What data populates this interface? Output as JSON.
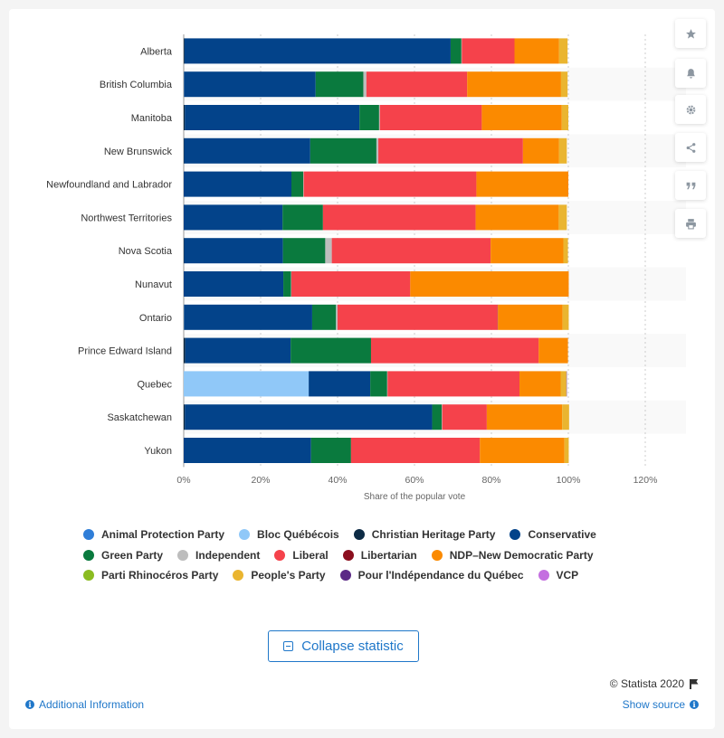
{
  "chart_data": {
    "type": "bar",
    "orientation": "horizontal",
    "stacked": true,
    "xlabel": "Share of the popular vote",
    "xlim": [
      0,
      120
    ],
    "xticks": [
      "0%",
      "20%",
      "40%",
      "60%",
      "80%",
      "100%",
      "120%"
    ],
    "grid": true,
    "legend_position": "bottom",
    "categories": [
      "Alberta",
      "British Columbia",
      "Manitoba",
      "New Brunswick",
      "Newfoundland and Labrador",
      "Northwest Territories",
      "Nova Scotia",
      "Nunavut",
      "Ontario",
      "Prince Edward Island",
      "Quebec",
      "Saskatchewan",
      "Yukon"
    ],
    "series": [
      {
        "name": "Animal Protection Party",
        "color": "#2f7ed8",
        "values": [
          0,
          0.1,
          0,
          0,
          0,
          0,
          0,
          0,
          0.1,
          0,
          0,
          0,
          0
        ]
      },
      {
        "name": "Bloc Québécois",
        "color": "#90c8f8",
        "values": [
          0,
          0,
          0,
          0,
          0,
          0,
          0,
          0,
          0,
          0,
          32.5,
          0,
          0
        ]
      },
      {
        "name": "Christian Heritage Party",
        "color": "#0d2b45",
        "values": [
          0.2,
          0.1,
          0.3,
          0.1,
          0,
          0,
          0.1,
          0,
          0.1,
          0.4,
          0,
          0.3,
          0
        ]
      },
      {
        "name": "Conservative",
        "color": "#03438a",
        "values": [
          69.2,
          34.1,
          45.4,
          32.8,
          28.0,
          25.7,
          25.7,
          25.9,
          33.2,
          27.4,
          16.0,
          64.3,
          33.1
        ]
      },
      {
        "name": "Green Party",
        "color": "#0a7a3e",
        "values": [
          2.8,
          12.4,
          5.1,
          17.2,
          3.1,
          10.5,
          11.0,
          2.0,
          6.2,
          20.9,
          4.4,
          2.5,
          10.4
        ]
      },
      {
        "name": "Independent",
        "color": "#bdbdbd",
        "values": [
          0.1,
          0.8,
          0.2,
          0.5,
          0.1,
          0,
          1.7,
          0.1,
          0.4,
          0,
          0.1,
          0.1,
          0
        ]
      },
      {
        "name": "Liberal",
        "color": "#f5424b",
        "values": [
          13.7,
          26.2,
          26.5,
          37.6,
          44.9,
          39.7,
          41.3,
          30.9,
          41.6,
          43.6,
          34.3,
          11.6,
          33.5
        ]
      },
      {
        "name": "Libertarian",
        "color": "#8b0e1e",
        "values": [
          0,
          0,
          0,
          0,
          0,
          0,
          0,
          0,
          0.1,
          0,
          0,
          0,
          0
        ]
      },
      {
        "name": "NDP–New Democratic Party",
        "color": "#fb8a00",
        "values": [
          11.6,
          24.4,
          20.8,
          9.4,
          23.9,
          21.6,
          18.9,
          41.2,
          16.8,
          7.6,
          10.7,
          19.6,
          22.0
        ]
      },
      {
        "name": "Parti Rhinocéros Party",
        "color": "#8bbc21",
        "values": [
          0,
          0,
          0,
          0,
          0,
          0,
          0,
          0,
          0,
          0,
          0,
          0,
          0
        ]
      },
      {
        "name": "People's Party",
        "color": "#eab530",
        "values": [
          2.2,
          1.7,
          1.7,
          2.0,
          0,
          2.1,
          1.2,
          0,
          1.6,
          0,
          1.5,
          1.8,
          1.1
        ]
      },
      {
        "name": "Pour l'Indépendance du Québec",
        "color": "#5b2a86",
        "values": [
          0,
          0,
          0,
          0,
          0,
          0,
          0,
          0,
          0,
          0,
          0.1,
          0,
          0
        ]
      },
      {
        "name": "VCP",
        "color": "#c46fe0",
        "values": [
          0,
          0,
          0,
          0,
          0,
          0,
          0,
          0,
          0,
          0,
          0,
          0,
          0
        ]
      }
    ]
  },
  "legend_rows": [
    [
      0,
      1,
      2,
      3
    ],
    [
      4,
      5,
      6,
      7,
      8
    ],
    [
      9,
      10,
      11,
      12
    ]
  ],
  "toolbar": {
    "icons": [
      "star-icon",
      "bell-icon",
      "gear-icon",
      "share-icon",
      "quote-icon",
      "print-icon"
    ]
  },
  "footer": {
    "collapse_label": "Collapse statistic",
    "credit": "© Statista 2020",
    "additional_info": "Additional Information",
    "show_source": "Show source"
  }
}
